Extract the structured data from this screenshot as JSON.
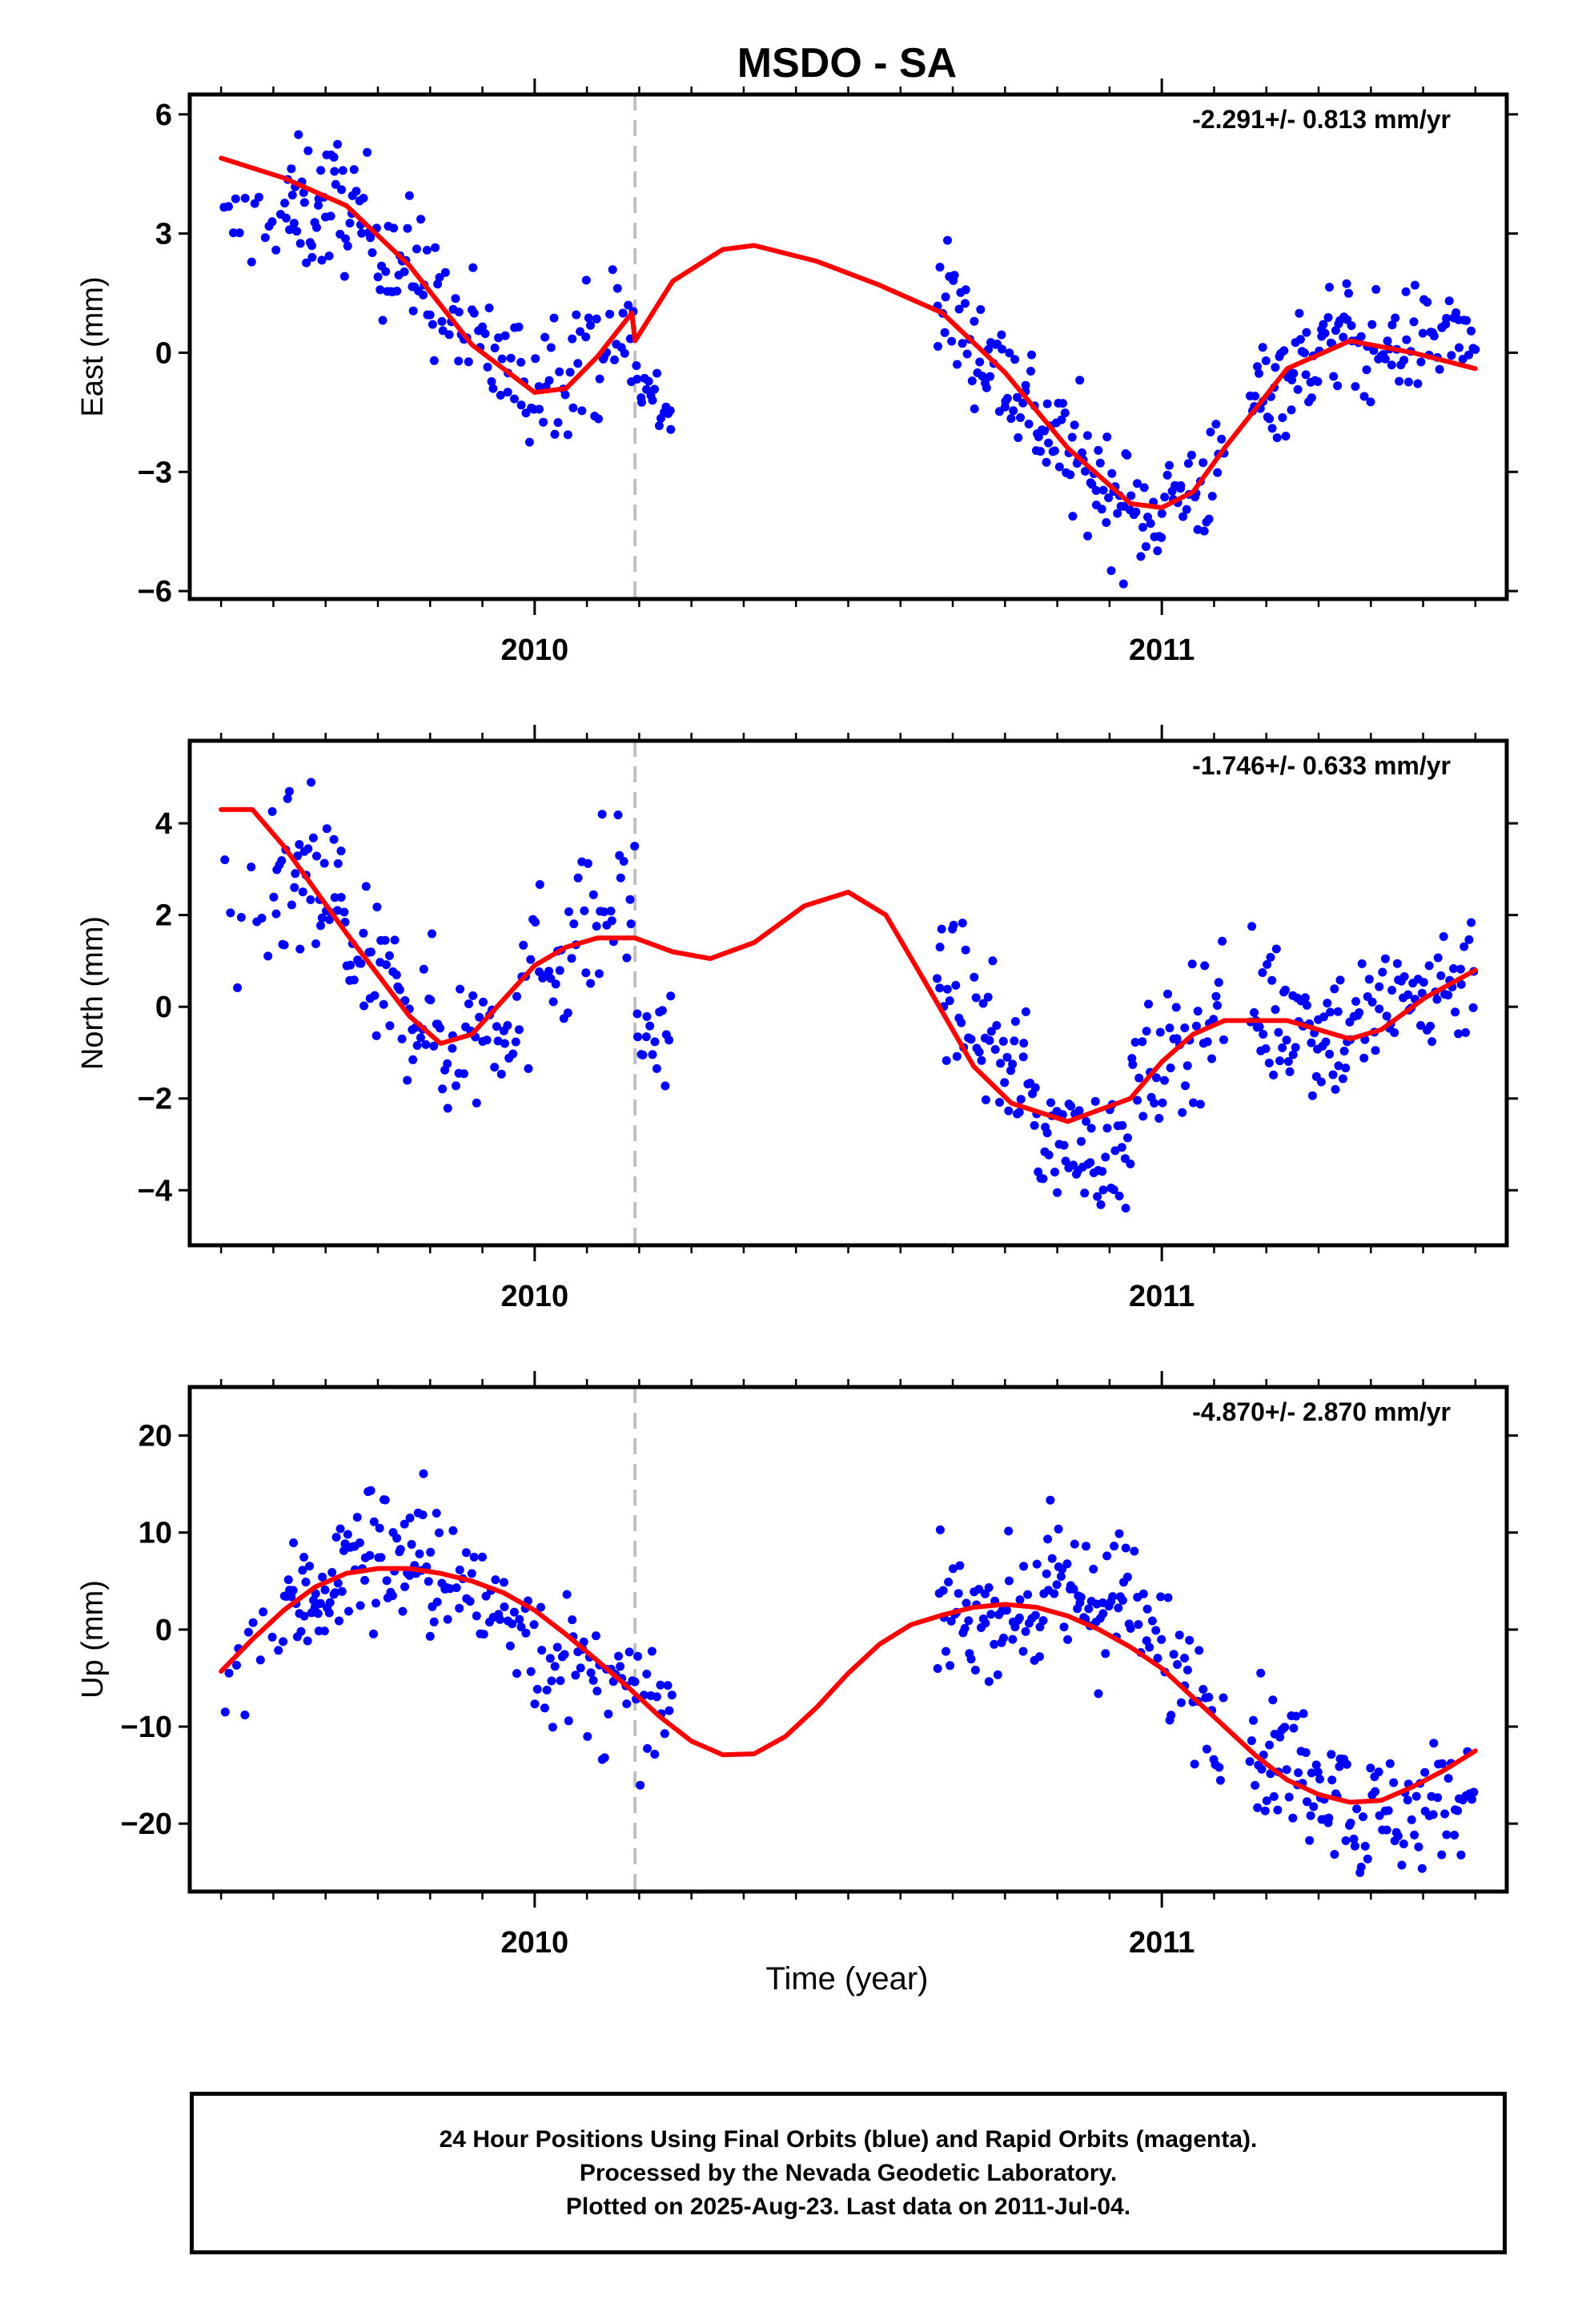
{
  "title": "MSDO - SA",
  "x_axis_label": "Time (year)",
  "footer_lines": [
    "24 Hour Positions Using Final Orbits (blue) and Rapid Orbits (magenta).",
    "Processed by the Nevada Geodetic Laboratory.",
    "Plotted on 2025-Aug-23. Last data on 2011-Jul-04."
  ],
  "colors": {
    "points": "#0000ff",
    "fit": "#ff0000",
    "discontinuity": "#c0c0c0",
    "frame": "#000000"
  },
  "chart_data": [
    {
      "type": "scatter",
      "name_panel": "east",
      "ylabel": "East (mm)",
      "rate_label": "-2.291+/- 0.813 mm/yr",
      "xlim": [
        2009.45,
        2011.55
      ],
      "ylim": [
        -6.2,
        6.5
      ],
      "yticks": [
        6,
        3,
        0,
        -3,
        -6
      ],
      "yticklabels": [
        "6",
        "3",
        "0",
        "−3",
        "−6"
      ],
      "xticks": [
        2010,
        2011
      ],
      "xticklabels": [
        "2010",
        "2011"
      ],
      "grid": false,
      "discontinuity_x": 2010.16,
      "fit_line": {
        "x": [
          2009.5,
          2009.6,
          2009.7,
          2009.8,
          2009.9,
          2010.0,
          2010.05,
          2010.1,
          2010.155,
          2010.16,
          2010.22,
          2010.3,
          2010.35,
          2010.45,
          2010.55,
          2010.65,
          2010.75,
          2010.85,
          2010.95,
          2011.0,
          2011.05,
          2011.1,
          2011.2,
          2011.3,
          2011.4,
          2011.5
        ],
        "y": [
          4.9,
          4.4,
          3.7,
          2.2,
          0.2,
          -1.0,
          -0.9,
          -0.1,
          1.0,
          0.3,
          1.8,
          2.6,
          2.7,
          2.3,
          1.7,
          1.0,
          -0.5,
          -2.4,
          -3.8,
          -3.9,
          -3.5,
          -2.4,
          -0.4,
          0.3,
          0.0,
          -0.4
        ]
      },
      "point_clusters": [
        {
          "x0": 2009.5,
          "x1": 2009.6,
          "n": 14,
          "y": [
            3.0,
            3.6
          ],
          "spread": 1.0
        },
        {
          "x0": 2009.6,
          "x1": 2009.7,
          "n": 40,
          "y": [
            3.5,
            3.8
          ],
          "spread": 1.4
        },
        {
          "x0": 2009.7,
          "x1": 2009.85,
          "n": 50,
          "y": [
            3.6,
            1.4
          ],
          "spread": 1.4
        },
        {
          "x0": 2009.85,
          "x1": 2010.0,
          "n": 42,
          "y": [
            1.0,
            -1.0
          ],
          "spread": 1.3
        },
        {
          "x0": 2010.0,
          "x1": 2010.16,
          "n": 45,
          "y": [
            -0.5,
            0.6
          ],
          "spread": 1.4
        },
        {
          "x0": 2010.16,
          "x1": 2010.22,
          "n": 18,
          "y": [
            -0.8,
            -1.5
          ],
          "spread": 1.0
        },
        {
          "x0": 2010.64,
          "x1": 2010.8,
          "n": 55,
          "y": [
            1.5,
            -1.5
          ],
          "spread": 1.3
        },
        {
          "x0": 2010.8,
          "x1": 2010.95,
          "n": 55,
          "y": [
            -1.7,
            -4.0
          ],
          "spread": 1.3
        },
        {
          "x0": 2010.95,
          "x1": 2011.1,
          "n": 45,
          "y": [
            -4.2,
            -3.0
          ],
          "spread": 1.2
        },
        {
          "x0": 2011.14,
          "x1": 2011.3,
          "n": 60,
          "y": [
            -1.2,
            0.6
          ],
          "spread": 1.2
        },
        {
          "x0": 2011.3,
          "x1": 2011.5,
          "n": 60,
          "y": [
            0.0,
            0.6
          ],
          "spread": 1.1
        }
      ]
    },
    {
      "type": "scatter",
      "name_panel": "north",
      "ylabel": "North (mm)",
      "rate_label": "-1.746+/- 0.633 mm/yr",
      "xlim": [
        2009.45,
        2011.55
      ],
      "ylim": [
        -5.2,
        5.8
      ],
      "yticks": [
        4,
        2,
        0,
        -2,
        -4
      ],
      "yticklabels": [
        "4",
        "2",
        "0",
        "−2",
        "−4"
      ],
      "xticks": [
        2010,
        2011
      ],
      "xticklabels": [
        "2010",
        "2011"
      ],
      "grid": false,
      "discontinuity_x": 2010.16,
      "fit_line": {
        "x": [
          2009.5,
          2009.55,
          2009.6,
          2009.7,
          2009.8,
          2009.85,
          2009.9,
          2010.0,
          2010.05,
          2010.1,
          2010.16,
          2010.22,
          2010.28,
          2010.35,
          2010.43,
          2010.5,
          2010.56,
          2010.62,
          2010.7,
          2010.76,
          2010.85,
          2010.95,
          2011.0,
          2011.05,
          2011.1,
          2011.2,
          2011.25,
          2011.3,
          2011.35,
          2011.42,
          2011.5
        ],
        "y": [
          4.3,
          4.3,
          3.5,
          1.6,
          -0.2,
          -0.8,
          -0.6,
          0.9,
          1.3,
          1.5,
          1.5,
          1.2,
          1.05,
          1.4,
          2.2,
          2.5,
          2.0,
          0.6,
          -1.3,
          -2.1,
          -2.5,
          -2.0,
          -1.2,
          -0.6,
          -0.3,
          -0.3,
          -0.5,
          -0.7,
          -0.5,
          0.2,
          0.8
        ]
      },
      "point_clusters": [
        {
          "x0": 2009.5,
          "x1": 2009.58,
          "n": 8,
          "y": [
            1.5,
            0.8
          ],
          "spread": 1.4
        },
        {
          "x0": 2009.58,
          "x1": 2009.7,
          "n": 42,
          "y": [
            2.8,
            2.3
          ],
          "spread": 1.6
        },
        {
          "x0": 2009.7,
          "x1": 2009.85,
          "n": 50,
          "y": [
            1.0,
            -0.5
          ],
          "spread": 1.3
        },
        {
          "x0": 2009.85,
          "x1": 2010.0,
          "n": 40,
          "y": [
            -1.0,
            0.3
          ],
          "spread": 1.4
        },
        {
          "x0": 2010.0,
          "x1": 2010.16,
          "n": 42,
          "y": [
            1.0,
            2.6
          ],
          "spread": 1.6
        },
        {
          "x0": 2010.16,
          "x1": 2010.22,
          "n": 16,
          "y": [
            -0.5,
            -1.0
          ],
          "spread": 1.0
        },
        {
          "x0": 2010.64,
          "x1": 2010.8,
          "n": 55,
          "y": [
            0.8,
            -2.0
          ],
          "spread": 1.2
        },
        {
          "x0": 2010.8,
          "x1": 2010.95,
          "n": 55,
          "y": [
            -2.8,
            -3.3
          ],
          "spread": 1.0
        },
        {
          "x0": 2010.95,
          "x1": 2011.1,
          "n": 45,
          "y": [
            -2.0,
            0.3
          ],
          "spread": 1.3
        },
        {
          "x0": 2011.14,
          "x1": 2011.3,
          "n": 60,
          "y": [
            0.0,
            -0.6
          ],
          "spread": 1.3
        },
        {
          "x0": 2011.3,
          "x1": 2011.5,
          "n": 60,
          "y": [
            -0.4,
            0.8
          ],
          "spread": 1.2
        }
      ]
    },
    {
      "type": "scatter",
      "name_panel": "up",
      "ylabel": "Up (mm)",
      "rate_label": "-4.870+/- 2.870 mm/yr",
      "xlim": [
        2009.45,
        2011.55
      ],
      "ylim": [
        -27,
        25
      ],
      "yticks": [
        20,
        10,
        0,
        -10,
        -20
      ],
      "yticklabels": [
        "20",
        "10",
        "0",
        "−10",
        "−20"
      ],
      "xticks": [
        2010,
        2011
      ],
      "xticklabels": [
        "2010",
        "2011"
      ],
      "grid": false,
      "discontinuity_x": 2010.16,
      "fit_line": {
        "x": [
          2009.5,
          2009.55,
          2009.6,
          2009.65,
          2009.7,
          2009.75,
          2009.8,
          2009.85,
          2009.9,
          2009.95,
          2010.0,
          2010.05,
          2010.1,
          2010.15,
          2010.2,
          2010.25,
          2010.3,
          2010.35,
          2010.4,
          2010.45,
          2010.5,
          2010.55,
          2010.6,
          2010.65,
          2010.7,
          2010.75,
          2010.8,
          2010.85,
          2010.9,
          2010.95,
          2011.0,
          2011.05,
          2011.1,
          2011.15,
          2011.2,
          2011.25,
          2011.3,
          2011.35,
          2011.4,
          2011.45,
          2011.5
        ],
        "y": [
          -4.3,
          -1.0,
          2.0,
          4.4,
          5.8,
          6.3,
          6.3,
          5.8,
          5.0,
          3.8,
          2.0,
          -0.5,
          -3.2,
          -6.0,
          -9.0,
          -11.5,
          -12.9,
          -12.8,
          -11.0,
          -8.0,
          -4.5,
          -1.5,
          0.5,
          1.5,
          2.3,
          2.6,
          2.3,
          1.4,
          0.0,
          -1.8,
          -4.0,
          -7.0,
          -10.0,
          -13.0,
          -15.5,
          -17.0,
          -17.8,
          -17.6,
          -16.2,
          -14.5,
          -12.5
        ]
      },
      "point_clusters": [
        {
          "x0": 2009.5,
          "x1": 2009.6,
          "n": 12,
          "y": [
            -3.0,
            1.0
          ],
          "spread": 6.0
        },
        {
          "x0": 2009.6,
          "x1": 2009.7,
          "n": 40,
          "y": [
            2.0,
            5.5
          ],
          "spread": 5.5
        },
        {
          "x0": 2009.7,
          "x1": 2009.85,
          "n": 55,
          "y": [
            8.0,
            7.0
          ],
          "spread": 6.5
        },
        {
          "x0": 2009.85,
          "x1": 2010.0,
          "n": 40,
          "y": [
            5.0,
            0.5
          ],
          "spread": 5.5
        },
        {
          "x0": 2010.0,
          "x1": 2010.16,
          "n": 45,
          "y": [
            -2.0,
            -8.0
          ],
          "spread": 6.0
        },
        {
          "x0": 2010.16,
          "x1": 2010.22,
          "n": 16,
          "y": [
            -8.0,
            -9.0
          ],
          "spread": 5.0
        },
        {
          "x0": 2010.64,
          "x1": 2010.8,
          "n": 55,
          "y": [
            1.5,
            2.0
          ],
          "spread": 5.0
        },
        {
          "x0": 2010.8,
          "x1": 2010.95,
          "n": 55,
          "y": [
            3.5,
            3.0
          ],
          "spread": 6.5
        },
        {
          "x0": 2010.95,
          "x1": 2011.1,
          "n": 40,
          "y": [
            1.0,
            -8.0
          ],
          "spread": 6.0
        },
        {
          "x0": 2011.14,
          "x1": 2011.3,
          "n": 60,
          "y": [
            -12.0,
            -16.0
          ],
          "spread": 5.5
        },
        {
          "x0": 2011.3,
          "x1": 2011.5,
          "n": 60,
          "y": [
            -20.0,
            -17.0
          ],
          "spread": 5.5
        }
      ]
    }
  ]
}
